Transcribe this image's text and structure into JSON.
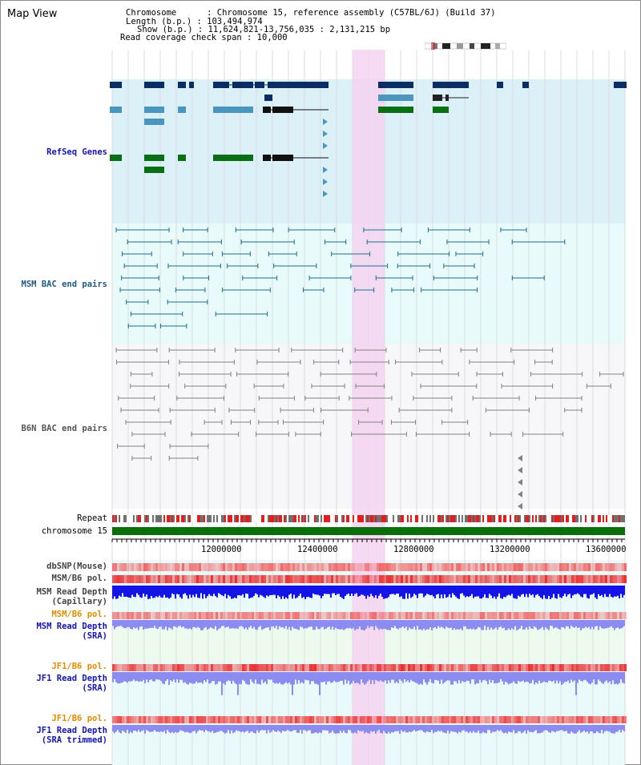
{
  "header": {
    "title": "Map View",
    "info_lines": [
      "Chromosome      : Chromosome 15, reference assembly (C57BL/6J) (Build 37)",
      "Length (b.p.) : 103,494,974",
      "Show (b.p.) : 11,624,821-13,756,035 : 2,131,215 bp",
      "Read coverage check span : 10,000"
    ]
  },
  "tracks": {
    "refseq": "RefSeq Genes",
    "msm_bac": "MSM BAC end pairs",
    "b6n_bac": "B6N BAC end pairs",
    "repeat": "Repeat",
    "chromosome": "chromosome 15",
    "dbsnp": "dbSNP(Mouse)",
    "msm_pol1": "MSM/B6 pol.",
    "msm_depth_cap_1": "MSM Read Depth",
    "msm_depth_cap_2": "(Capillary)",
    "msm_pol2": "MSM/B6 pol.",
    "msm_depth_sra_1": "MSM Read Depth",
    "msm_depth_sra_2": "(SRA)",
    "jf1_pol1": "JF1/B6 pol.",
    "jf1_depth_sra_1": "JF1 Read Depth",
    "jf1_depth_sra_2": "(SRA)",
    "jf1_pol2": "JF1/B6 pol.",
    "jf1_depth_tr_1": "JF1 Read Depth",
    "jf1_depth_tr_2": "(SRA trimmed)"
  },
  "axis": {
    "ticks": [
      "12000000",
      "12400000",
      "12800000",
      "13200000",
      "13600000"
    ]
  },
  "colors": {
    "refseq_bg": "#dcf0f8",
    "msm_bg": "#e8fafa",
    "b6n_bg": "#f7f7fa",
    "highlight": "#f5d2f0",
    "gene_dark": "#0a2d64",
    "gene_mid": "#4b96be",
    "gene_green": "#0a6e14",
    "msm_pair": "#1e6e8c",
    "b6n_pair": "#828282",
    "chrom": "#0a6e0a",
    "snp": "#f06464",
    "depth_blue": "#1414e6",
    "depth_light": "#8c8cf0"
  }
}
